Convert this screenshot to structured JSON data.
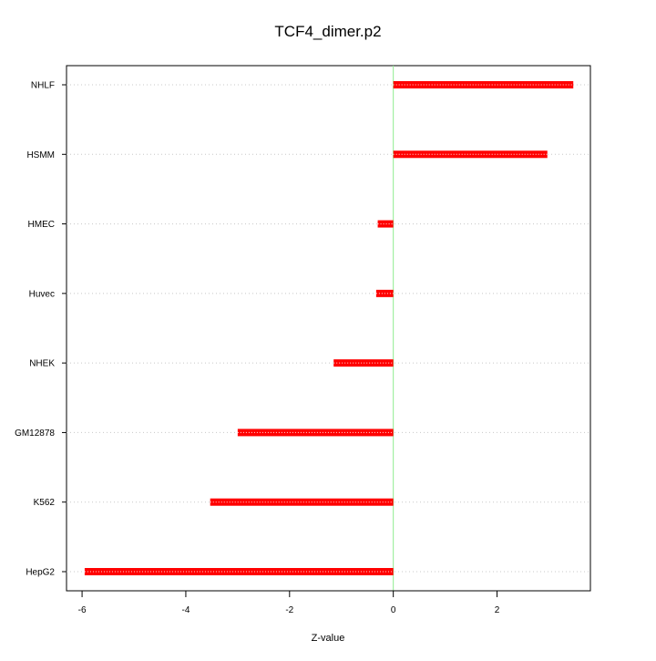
{
  "chart_data": {
    "type": "bar",
    "orientation": "horizontal",
    "title": "TCF4_dimer.p2",
    "xlabel": "Z-value",
    "ylabel": "",
    "categories": [
      "NHLF",
      "HSMM",
      "HMEC",
      "Huvec",
      "NHEK",
      "GM12878",
      "K562",
      "HepG2"
    ],
    "values": [
      3.47,
      2.97,
      -0.3,
      -0.33,
      -1.15,
      -3.0,
      -3.53,
      -5.95
    ],
    "xlim": [
      -6.3,
      3.8
    ],
    "xticks": [
      -6,
      -4,
      -2,
      0,
      2
    ],
    "xtick_labels": [
      "-6",
      "-4",
      "-2",
      "0",
      "2"
    ],
    "grid": "horizontal dotted",
    "bar_color": "#ff0000",
    "zero_line_color": "#90ee90",
    "grid_color": "#c8c8c8"
  }
}
